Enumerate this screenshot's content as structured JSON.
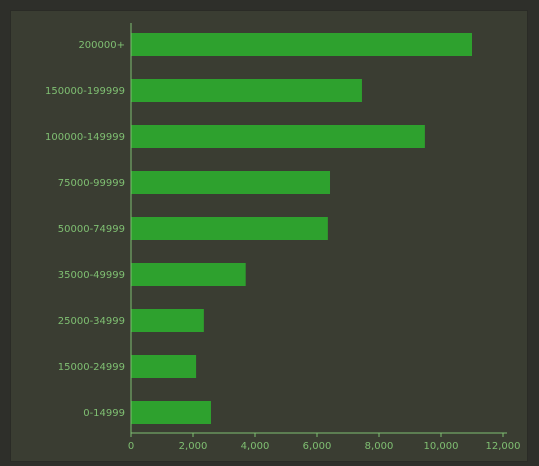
{
  "chart_data": {
    "type": "bar",
    "orientation": "horizontal",
    "categories": [
      "200000+",
      "150000-199999",
      "100000-149999",
      "75000-99999",
      "50000-74999",
      "35000-49999",
      "25000-34999",
      "15000-24999",
      "0-14999"
    ],
    "values": [
      11000,
      7450,
      9480,
      6420,
      6350,
      3700,
      2350,
      2100,
      2580
    ],
    "title": "",
    "xlabel": "",
    "ylabel": "",
    "xlim": [
      0,
      12000
    ],
    "x_ticks": [
      0,
      2000,
      4000,
      6000,
      8000,
      10000,
      12000
    ],
    "x_tick_labels": [
      "0",
      "2,000",
      "4,000",
      "6,000",
      "8,000",
      "10,000",
      "12,000"
    ],
    "grid": false,
    "legend": "none",
    "colors": {
      "bar": "#2ea12e",
      "axis": "#7fbf72",
      "background": "#3a3d32"
    }
  }
}
